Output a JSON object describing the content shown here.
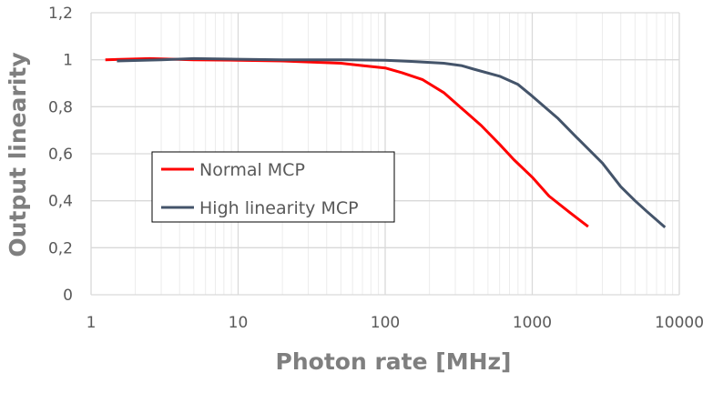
{
  "chart_data": {
    "type": "line",
    "title": "",
    "xlabel": "Photon rate [MHz]",
    "ylabel": "Output linearity",
    "xscale": "log",
    "xlim": [
      1,
      10000
    ],
    "ylim": [
      0,
      1.2
    ],
    "xticks": [
      "1",
      "10",
      "100",
      "1000",
      "10000"
    ],
    "yticks": [
      "0",
      "0,2",
      "0,4",
      "0,6",
      "0,8",
      "1",
      "1,2"
    ],
    "grid": true,
    "legend_position": "center-left",
    "series": [
      {
        "name": "Normal MCP",
        "color": "#ff0000",
        "x": [
          1.25,
          2.5,
          5,
          10,
          20,
          50,
          70,
          100,
          130,
          180,
          250,
          350,
          450,
          600,
          750,
          1000,
          1300,
          1800,
          2400
        ],
        "y": [
          1.0,
          1.005,
          1.0,
          0.998,
          0.995,
          0.985,
          0.975,
          0.965,
          0.945,
          0.915,
          0.86,
          0.78,
          0.72,
          0.64,
          0.575,
          0.5,
          0.42,
          0.35,
          0.29
        ]
      },
      {
        "name": "High linearity MCP",
        "color": "#44546a",
        "x": [
          1.5,
          3,
          5,
          10,
          20,
          50,
          100,
          150,
          250,
          330,
          400,
          600,
          800,
          1000,
          1500,
          2000,
          3000,
          4000,
          5000,
          6000,
          8000
        ],
        "y": [
          0.995,
          1.0,
          1.005,
          1.002,
          1.0,
          1.0,
          0.998,
          0.993,
          0.985,
          0.975,
          0.96,
          0.93,
          0.895,
          0.845,
          0.75,
          0.67,
          0.56,
          0.46,
          0.4,
          0.355,
          0.287
        ]
      }
    ]
  }
}
